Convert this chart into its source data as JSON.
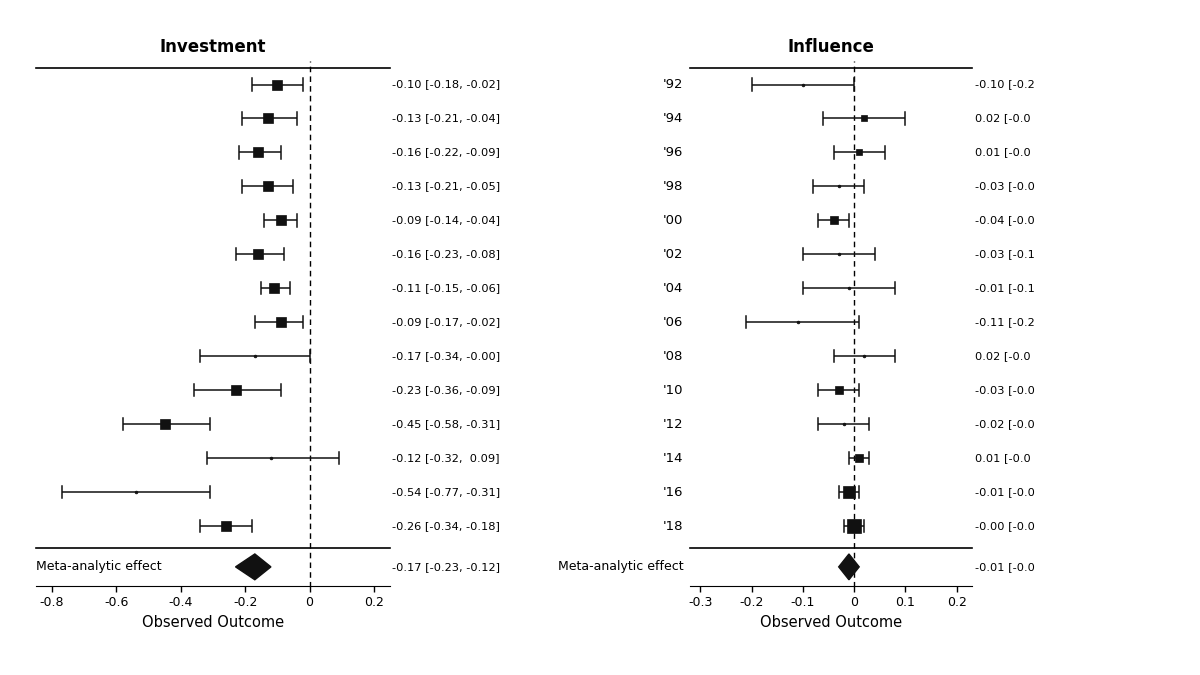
{
  "years": [
    "'92",
    "'94",
    "'96",
    "'98",
    "'00",
    "'02",
    "'04",
    "'06",
    "'08",
    "'10",
    "'12",
    "'14",
    "'16",
    "'18"
  ],
  "investment": {
    "coef": [
      -0.1,
      -0.13,
      -0.16,
      -0.13,
      -0.09,
      -0.16,
      -0.11,
      -0.09,
      -0.17,
      -0.23,
      -0.45,
      -0.12,
      -0.54,
      -0.26
    ],
    "ci_low": [
      -0.18,
      -0.21,
      -0.22,
      -0.21,
      -0.14,
      -0.23,
      -0.15,
      -0.17,
      -0.34,
      -0.36,
      -0.58,
      -0.32,
      -0.77,
      -0.34
    ],
    "ci_high": [
      -0.02,
      -0.04,
      -0.09,
      -0.05,
      -0.04,
      -0.08,
      -0.06,
      -0.02,
      0.0,
      -0.09,
      -0.31,
      0.09,
      -0.31,
      -0.18
    ],
    "marker_type": [
      "s",
      "s",
      "s",
      "s",
      "s",
      "s",
      "s",
      "s",
      ".",
      "s",
      "s",
      ".",
      ".",
      "s"
    ],
    "marker_size": [
      7,
      7,
      7,
      7,
      7,
      7,
      7,
      7,
      4,
      7,
      7,
      4,
      4,
      7
    ],
    "labels": [
      "-0.10 [-0.18, -0.02]",
      "-0.13 [-0.21, -0.04]",
      "-0.16 [-0.22, -0.09]",
      "-0.13 [-0.21, -0.05]",
      "-0.09 [-0.14, -0.04]",
      "-0.16 [-0.23, -0.08]",
      "-0.11 [-0.15, -0.06]",
      "-0.09 [-0.17, -0.02]",
      "-0.17 [-0.34, -0.00]",
      "-0.23 [-0.36, -0.09]",
      "-0.45 [-0.58, -0.31]",
      "-0.12 [-0.32,  0.09]",
      "-0.54 [-0.77, -0.31]",
      "-0.26 [-0.34, -0.18]"
    ],
    "meta_coef": -0.17,
    "meta_ci_low": -0.23,
    "meta_ci_high": -0.12,
    "meta_label": "-0.17 [-0.23, -0.12]",
    "xlim": [
      -0.85,
      0.25
    ],
    "xticks": [
      -0.8,
      -0.6,
      -0.4,
      -0.2,
      0.0,
      0.2
    ],
    "xlabel": "Observed Outcome",
    "title": "Investment"
  },
  "influence": {
    "coef": [
      -0.1,
      0.02,
      0.01,
      -0.03,
      -0.04,
      -0.03,
      -0.01,
      -0.11,
      0.02,
      -0.03,
      -0.02,
      0.01,
      -0.01,
      0.0
    ],
    "ci_low": [
      -0.2,
      -0.06,
      -0.04,
      -0.08,
      -0.07,
      -0.1,
      -0.1,
      -0.21,
      -0.04,
      -0.07,
      -0.07,
      -0.01,
      -0.03,
      -0.02
    ],
    "ci_high": [
      0.0,
      0.1,
      0.06,
      0.02,
      -0.01,
      0.04,
      0.08,
      0.01,
      0.08,
      0.01,
      0.03,
      0.03,
      0.01,
      0.02
    ],
    "marker_type": [
      ".",
      "s",
      "s",
      ".",
      "s",
      ".",
      ".",
      ".",
      ".",
      "s",
      ".",
      "s",
      "s",
      "s"
    ],
    "marker_size": [
      4,
      5,
      5,
      4,
      6,
      4,
      4,
      4,
      4,
      6,
      4,
      6,
      9,
      10
    ],
    "labels": [
      "-0.10 [-0.2",
      "0.02 [-0.0",
      "0.01 [-0.0",
      "-0.03 [-0.0",
      "-0.04 [-0.0",
      "-0.03 [-0.1",
      "-0.01 [-0.1",
      "-0.11 [-0.2",
      "0.02 [-0.0",
      "-0.03 [-0.0",
      "-0.02 [-0.0",
      "0.01 [-0.0",
      "-0.01 [-0.0",
      "-0.00 [-0.0"
    ],
    "meta_coef": -0.01,
    "meta_ci_low": -0.03,
    "meta_ci_high": 0.01,
    "meta_label": "-0.01 [-0.0",
    "xlim": [
      -0.32,
      0.23
    ],
    "xticks": [
      -0.3,
      -0.2,
      -0.1,
      0.0,
      0.1,
      0.2
    ],
    "xlabel": "Observed Outcome",
    "title": "Influence"
  },
  "background_color": "#ffffff",
  "marker_color": "#111111",
  "line_color": "#111111",
  "text_color": "#000000"
}
